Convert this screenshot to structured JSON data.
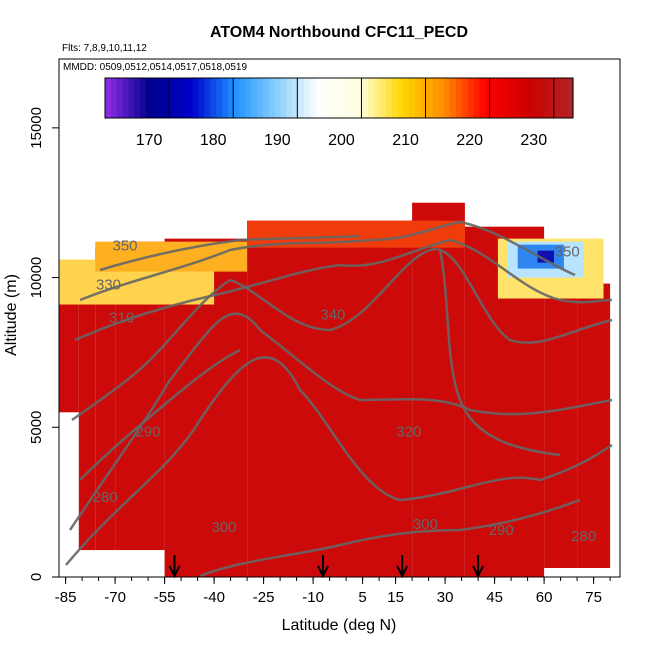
{
  "chart_data": {
    "type": "heatmap",
    "title": "ATOM4 Northbound CFC11_PECD",
    "subtitle_flights": "Flts: 7,8,9,10,11,12",
    "subtitle_dates": "MMDD: 0509,0512,0514,0517,0518,0519",
    "xlabel": "Latitude (deg N)",
    "ylabel": "Altitude (m)",
    "xlim": [
      -87,
      83
    ],
    "ylim": [
      0,
      17300
    ],
    "x_ticks": [
      -85,
      -70,
      -55,
      -40,
      -25,
      -10,
      5,
      15,
      30,
      45,
      60,
      75
    ],
    "y_ticks": [
      0,
      5000,
      10000,
      15000
    ],
    "colorbar": {
      "range": [
        160,
        233
      ],
      "ticks": [
        170,
        180,
        190,
        200,
        210,
        220,
        230
      ],
      "colors": [
        "#8a2be2",
        "#00008b",
        "#0000cd",
        "#1e90ff",
        "#87cefa",
        "#ffffff",
        "#ffffe0",
        "#ffd700",
        "#ff8c00",
        "#ff0000",
        "#cd0000",
        "#b22222"
      ]
    },
    "theta_contour_labels": [
      {
        "value": "350",
        "lat": -67,
        "alt": 10900
      },
      {
        "value": "330",
        "lat": -72,
        "alt": 9600
      },
      {
        "value": "310",
        "lat": -68,
        "alt": 8500
      },
      {
        "value": "340",
        "lat": -4,
        "alt": 8600
      },
      {
        "value": "320",
        "lat": 19,
        "alt": 4700
      },
      {
        "value": "290",
        "lat": -60,
        "alt": 4700
      },
      {
        "value": "280",
        "lat": -73,
        "alt": 2500
      },
      {
        "value": "300",
        "lat": -37,
        "alt": 1500
      },
      {
        "value": "300",
        "lat": 24,
        "alt": 1600
      },
      {
        "value": "290",
        "lat": 47,
        "alt": 1400
      },
      {
        "value": "280",
        "lat": 72,
        "alt": 1200
      },
      {
        "value": "350",
        "lat": 67,
        "alt": 10700
      }
    ],
    "sample_arrows_lat": [
      -52,
      -7,
      17,
      40
    ],
    "fill_extent": {
      "columns": [
        {
          "lat0": -87,
          "lat1": -81,
          "top": 9900,
          "bottom": 5500
        },
        {
          "lat0": -81,
          "lat1": -76,
          "top": 10500,
          "bottom": 900
        },
        {
          "lat0": -76,
          "lat1": -70,
          "top": 11000,
          "bottom": 900
        },
        {
          "lat0": -70,
          "lat1": -55,
          "top": 11200,
          "bottom": 900
        },
        {
          "lat0": -55,
          "lat1": -30,
          "top": 11300,
          "bottom": 0
        },
        {
          "lat0": -30,
          "lat1": 20,
          "top": 11900,
          "bottom": 0
        },
        {
          "lat0": 20,
          "lat1": 36,
          "top": 12500,
          "bottom": 0
        },
        {
          "lat0": 36,
          "lat1": 60,
          "top": 11700,
          "bottom": 0
        },
        {
          "lat0": 60,
          "lat1": 70,
          "top": 10900,
          "bottom": 300
        },
        {
          "lat0": 70,
          "lat1": 80,
          "top": 9800,
          "bottom": 300
        }
      ],
      "lowCFC_top_band_alt": [
        9100,
        11300
      ],
      "lowCFC_north_region": {
        "lat0": 46,
        "lat1": 78,
        "alt0": 9300,
        "alt1": 11300
      }
    }
  }
}
